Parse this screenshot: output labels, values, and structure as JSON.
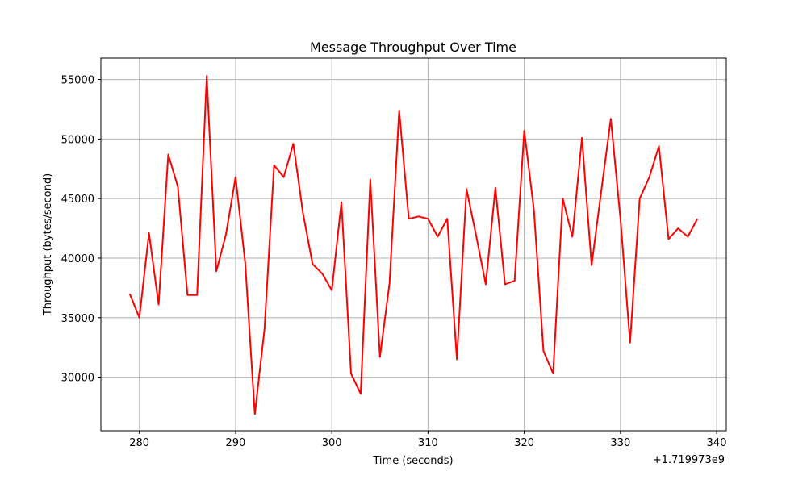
{
  "chart_data": {
    "type": "line",
    "title": "Message Throughput Over Time",
    "xlabel": "Time (seconds)",
    "ylabel": "Throughput (bytes/second)",
    "x_offset_label": "+1.719973e9",
    "xlim": [
      276,
      341
    ],
    "ylim": [
      25500,
      56800
    ],
    "xticks": [
      280,
      290,
      300,
      310,
      320,
      330,
      340
    ],
    "yticks": [
      30000,
      35000,
      40000,
      45000,
      50000,
      55000
    ],
    "grid": true,
    "series": [
      {
        "color": "#ff0000",
        "x": [
          279,
          280,
          281,
          282,
          283,
          284,
          285,
          286,
          287,
          288,
          289,
          290,
          291,
          292,
          293,
          294,
          295,
          296,
          297,
          298,
          299,
          300,
          301,
          302,
          303,
          304,
          305,
          306,
          307,
          308,
          309,
          310,
          311,
          312,
          313,
          314,
          315,
          316,
          317,
          318,
          319,
          320,
          321,
          322,
          323,
          324,
          325,
          326,
          327,
          328,
          329,
          330,
          331,
          332,
          333,
          334,
          335,
          336,
          337,
          338
        ],
        "y": [
          37000,
          35000,
          42100,
          36100,
          48700,
          46000,
          36900,
          36900,
          55300,
          38900,
          42000,
          46800,
          39600,
          26900,
          34000,
          47800,
          46800,
          49600,
          43800,
          39500,
          38700,
          37300,
          44700,
          30300,
          28600,
          46600,
          31700,
          37900,
          52400,
          43300,
          43500,
          43300,
          41800,
          43300,
          31500,
          45800,
          41900,
          37800,
          45900,
          37800,
          38100,
          50700,
          44100,
          32200,
          30300,
          45000,
          41800,
          50100,
          39400,
          45600,
          51700,
          43300,
          32900,
          45000,
          46800,
          49400,
          41600,
          42500,
          41800,
          43300
        ]
      }
    ]
  }
}
